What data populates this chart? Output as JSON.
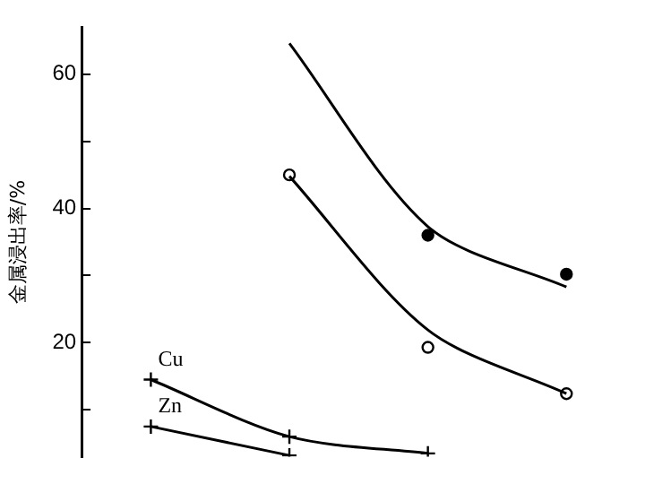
{
  "chart_data": {
    "type": "line",
    "ylabel": "金属浸出率/%",
    "categories": [
      null,
      null,
      null,
      null
    ],
    "series": [
      {
        "name": "Cu",
        "color": "#000000",
        "marker": "cross",
        "values": [
          14.5,
          6,
          3.5,
          null
        ]
      },
      {
        "name": "Zn",
        "color": "#000000",
        "marker": "cross",
        "values": [
          7.5,
          3.2,
          null,
          null
        ]
      },
      {
        "color": "#000000",
        "marker": "none",
        "values": [
          null,
          64.6,
          37.3,
          28.3
        ]
      },
      {
        "type": "scatter",
        "color": "#000000",
        "marker": "circle",
        "values": [
          null,
          null,
          36,
          30.2
        ]
      },
      {
        "color": "#000000",
        "marker": "none",
        "values": [
          null,
          44.8,
          21.9,
          12.4
        ]
      },
      {
        "type": "scatter",
        "color": "#ffffff",
        "marker": "circle",
        "values": [
          null,
          45,
          19.3,
          12.4
        ]
      }
    ],
    "ylim": [
      3,
      67
    ],
    "yticks": [
      {
        "value": 10,
        "label": null
      },
      20,
      {
        "value": 30,
        "label": null
      },
      40,
      {
        "value": 50,
        "label": null
      },
      60
    ],
    "grid": false,
    "legend": false
  }
}
